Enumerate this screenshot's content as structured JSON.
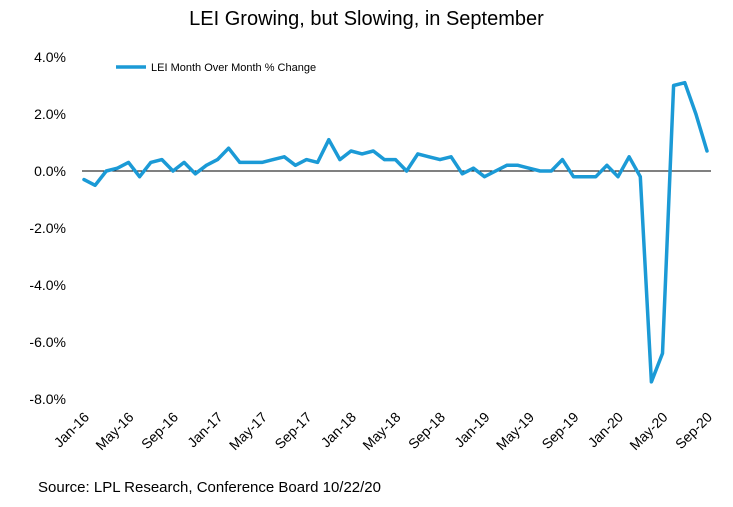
{
  "title": "LEI Growing, but Slowing, in September",
  "source": "Source: LPL Research, Conference Board 10/22/20",
  "chart_data": {
    "type": "line",
    "title": "LEI Growing, but Slowing, in September",
    "xlabel": "",
    "ylabel": "",
    "ylim": [
      -8.0,
      4.0
    ],
    "yticks": [
      "4.0%",
      "2.0%",
      "0.0%",
      "-2.0%",
      "-4.0%",
      "-6.0%",
      "-8.0%"
    ],
    "ytick_values": [
      4,
      2,
      0,
      -2,
      -4,
      -6,
      -8
    ],
    "xtick_labels": [
      "Jan-16",
      "May-16",
      "Sep-16",
      "Jan-17",
      "May-17",
      "Sep-17",
      "Jan-18",
      "May-18",
      "Sep-18",
      "Jan-19",
      "May-19",
      "Sep-19",
      "Jan-20",
      "May-20",
      "Sep-20"
    ],
    "legend": "top-left",
    "color": "#1b9ad6",
    "zero_line": true,
    "series": [
      {
        "name": "LEI Month Over Month % Change",
        "x": [
          "Jan-16",
          "Feb-16",
          "Mar-16",
          "Apr-16",
          "May-16",
          "Jun-16",
          "Jul-16",
          "Aug-16",
          "Sep-16",
          "Oct-16",
          "Nov-16",
          "Dec-16",
          "Jan-17",
          "Feb-17",
          "Mar-17",
          "Apr-17",
          "May-17",
          "Jun-17",
          "Jul-17",
          "Aug-17",
          "Sep-17",
          "Oct-17",
          "Nov-17",
          "Dec-17",
          "Jan-18",
          "Feb-18",
          "Mar-18",
          "Apr-18",
          "May-18",
          "Jun-18",
          "Jul-18",
          "Aug-18",
          "Sep-18",
          "Oct-18",
          "Nov-18",
          "Dec-18",
          "Jan-19",
          "Feb-19",
          "Mar-19",
          "Apr-19",
          "May-19",
          "Jun-19",
          "Jul-19",
          "Aug-19",
          "Sep-19",
          "Oct-19",
          "Nov-19",
          "Dec-19",
          "Jan-20",
          "Feb-20",
          "Mar-20",
          "Apr-20",
          "May-20",
          "Jun-20",
          "Jul-20",
          "Aug-20",
          "Sep-20"
        ],
        "values": [
          -0.3,
          -0.5,
          0.0,
          0.1,
          0.3,
          -0.2,
          0.3,
          0.4,
          0.0,
          0.3,
          -0.1,
          0.2,
          0.4,
          0.8,
          0.3,
          0.3,
          0.3,
          0.4,
          0.5,
          0.2,
          0.4,
          0.3,
          1.1,
          0.4,
          0.7,
          0.6,
          0.7,
          0.4,
          0.4,
          0.0,
          0.6,
          0.5,
          0.4,
          0.5,
          -0.1,
          0.1,
          -0.2,
          0.0,
          0.2,
          0.2,
          0.1,
          0.0,
          0.0,
          0.4,
          -0.2,
          -0.2,
          -0.2,
          0.2,
          -0.2,
          0.5,
          -0.2,
          -7.4,
          -6.4,
          3.0,
          3.1,
          2.0,
          0.7
        ]
      }
    ]
  }
}
